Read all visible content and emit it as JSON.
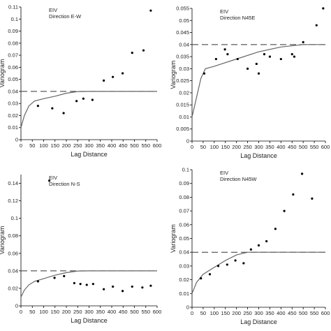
{
  "chart_data": [
    {
      "type": "scatter",
      "panel_label": "EIV\nDirection E-W",
      "xlabel": "Lag Distance",
      "ylabel": "Variogram",
      "xlim": [
        0,
        600
      ],
      "ylim": [
        0,
        0.11
      ],
      "xticks": [
        0,
        50,
        100,
        150,
        200,
        250,
        300,
        350,
        400,
        450,
        500,
        550,
        600
      ],
      "yticks": [
        0,
        0.01,
        0.02,
        0.03,
        0.04,
        0.05,
        0.06,
        0.07,
        0.08,
        0.09,
        0.1,
        0.11
      ],
      "points": [
        [
          75,
          0.028
        ],
        [
          138,
          0.026
        ],
        [
          188,
          0.022
        ],
        [
          245,
          0.032
        ],
        [
          275,
          0.034
        ],
        [
          315,
          0.033
        ],
        [
          365,
          0.049
        ],
        [
          405,
          0.052
        ],
        [
          448,
          0.055
        ],
        [
          490,
          0.072
        ],
        [
          540,
          0.074
        ],
        [
          572,
          0.107
        ]
      ],
      "sill": 0.04,
      "model": [
        [
          0,
          0.01
        ],
        [
          15,
          0.02
        ],
        [
          35,
          0.028
        ],
        [
          60,
          0.032
        ],
        [
          100,
          0.034
        ],
        [
          150,
          0.036
        ],
        [
          200,
          0.0385
        ],
        [
          250,
          0.0399
        ],
        [
          300,
          0.04
        ],
        [
          600,
          0.04
        ]
      ]
    },
    {
      "type": "scatter",
      "panel_label": "EIV\nDirection N45E",
      "xlabel": "Lag Distance",
      "ylabel": "Variogram",
      "xlim": [
        0,
        600
      ],
      "ylim": [
        0,
        0.055
      ],
      "xticks": [
        0,
        50,
        100,
        150,
        200,
        250,
        300,
        350,
        400,
        450,
        500,
        550,
        600
      ],
      "yticks": [
        0,
        0.005,
        0.01,
        0.015,
        0.02,
        0.025,
        0.03,
        0.035,
        0.04,
        0.045,
        0.05,
        0.055
      ],
      "points": [
        [
          55,
          0.028
        ],
        [
          108,
          0.034
        ],
        [
          148,
          0.038
        ],
        [
          160,
          0.036
        ],
        [
          205,
          0.034
        ],
        [
          250,
          0.03
        ],
        [
          290,
          0.032
        ],
        [
          300,
          0.028
        ],
        [
          325,
          0.036
        ],
        [
          350,
          0.035
        ],
        [
          400,
          0.034
        ],
        [
          450,
          0.036
        ],
        [
          460,
          0.035
        ],
        [
          500,
          0.041
        ],
        [
          560,
          0.048
        ],
        [
          590,
          0.055
        ]
      ],
      "sill": 0.04,
      "model": [
        [
          0,
          0.01
        ],
        [
          20,
          0.018
        ],
        [
          40,
          0.026
        ],
        [
          60,
          0.03
        ],
        [
          100,
          0.031
        ],
        [
          200,
          0.034
        ],
        [
          300,
          0.037
        ],
        [
          400,
          0.039
        ],
        [
          500,
          0.04
        ],
        [
          600,
          0.04
        ]
      ]
    },
    {
      "type": "scatter",
      "panel_label": "EIV\nDirection N-S",
      "xlabel": "Lag Distance",
      "ylabel": "Variogram",
      "xlim": [
        0,
        600
      ],
      "ylim": [
        0,
        0.15
      ],
      "xticks": [
        0,
        50,
        100,
        150,
        200,
        250,
        300,
        350,
        400,
        450,
        500,
        550,
        600
      ],
      "yticks": [
        0,
        0.02,
        0.04,
        0.06,
        0.08,
        0.1,
        0.12,
        0.14
      ],
      "points": [
        [
          75,
          0.028
        ],
        [
          125,
          0.143
        ],
        [
          148,
          0.032
        ],
        [
          190,
          0.034
        ],
        [
          235,
          0.026
        ],
        [
          262,
          0.025
        ],
        [
          290,
          0.024
        ],
        [
          318,
          0.025
        ],
        [
          365,
          0.019
        ],
        [
          405,
          0.022
        ],
        [
          448,
          0.017
        ],
        [
          490,
          0.022
        ],
        [
          535,
          0.021
        ],
        [
          572,
          0.023
        ]
      ],
      "sill": 0.04,
      "model": [
        [
          0,
          0.01
        ],
        [
          15,
          0.018
        ],
        [
          35,
          0.024
        ],
        [
          60,
          0.028
        ],
        [
          100,
          0.031
        ],
        [
          150,
          0.035
        ],
        [
          200,
          0.038
        ],
        [
          250,
          0.0398
        ],
        [
          300,
          0.04
        ],
        [
          600,
          0.04
        ]
      ]
    },
    {
      "type": "scatter",
      "panel_label": "EIV\nDirection N45W",
      "xlabel": "Lag Distance",
      "ylabel": "Variogram",
      "xlim": [
        0,
        600
      ],
      "ylim": [
        0,
        0.1
      ],
      "xticks": [
        0,
        50,
        100,
        150,
        200,
        250,
        300,
        350,
        400,
        450,
        500,
        550,
        600
      ],
      "yticks": [
        0,
        0.01,
        0.02,
        0.03,
        0.04,
        0.05,
        0.06,
        0.07,
        0.08,
        0.09,
        0.1
      ],
      "points": [
        [
          40,
          0.021
        ],
        [
          80,
          0.024
        ],
        [
          118,
          0.03
        ],
        [
          158,
          0.031
        ],
        [
          195,
          0.034
        ],
        [
          232,
          0.032
        ],
        [
          265,
          0.042
        ],
        [
          300,
          0.045
        ],
        [
          335,
          0.048
        ],
        [
          375,
          0.057
        ],
        [
          415,
          0.07
        ],
        [
          455,
          0.082
        ],
        [
          495,
          0.097
        ],
        [
          540,
          0.079
        ]
      ],
      "sill": 0.04,
      "model": [
        [
          0,
          0.01
        ],
        [
          20,
          0.018
        ],
        [
          50,
          0.024
        ],
        [
          100,
          0.029
        ],
        [
          150,
          0.034
        ],
        [
          200,
          0.038
        ],
        [
          250,
          0.04
        ],
        [
          600,
          0.04
        ]
      ]
    }
  ]
}
